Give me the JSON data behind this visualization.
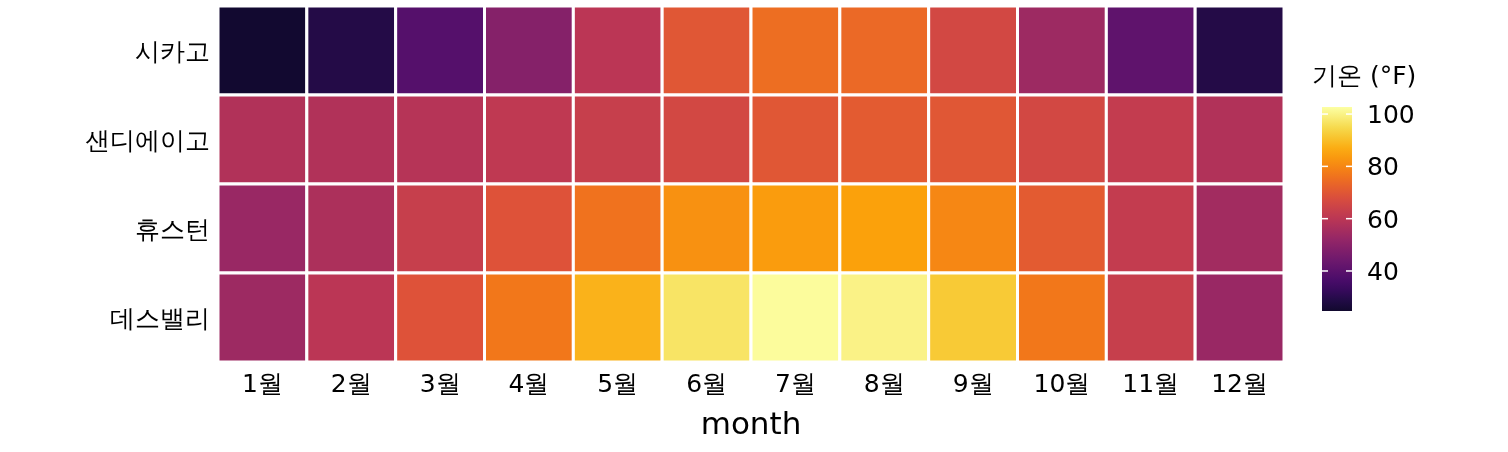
{
  "chart_data": {
    "type": "heatmap",
    "xlabel": "month",
    "clabel": "기온 (°F)",
    "categories": [
      "1월",
      "2월",
      "3월",
      "4월",
      "5월",
      "6월",
      "7월",
      "8월",
      "9월",
      "10월",
      "11월",
      "12월"
    ],
    "y_categories": [
      "시카고",
      "샌디에이고",
      "휴스턴",
      "데스밸리"
    ],
    "cells": [
      [
        25,
        29,
        39,
        49,
        60,
        70,
        75,
        74,
        66,
        54,
        41,
        29
      ],
      [
        58,
        58,
        59,
        61,
        63,
        66,
        70,
        71,
        70,
        66,
        62,
        58
      ],
      [
        53,
        57,
        63,
        69,
        76,
        82,
        84,
        85,
        80,
        71,
        62,
        55
      ],
      [
        54,
        60,
        69,
        77,
        88,
        97,
        102,
        100,
        92,
        77,
        63,
        53
      ]
    ],
    "clim": [
      24.7,
      102.7
    ],
    "cticks": [
      40,
      60,
      80,
      100
    ]
  }
}
